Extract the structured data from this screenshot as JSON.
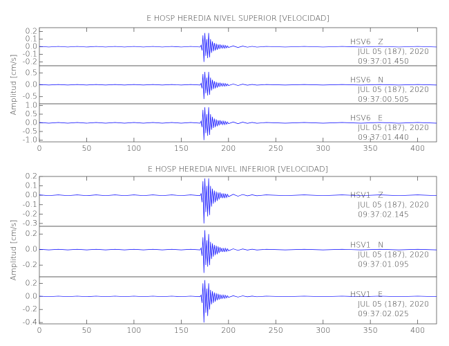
{
  "chart_data": [
    {
      "type": "line",
      "title": "E HOSP HEREDIA NIVEL SUPERIOR [VELOCIDAD]",
      "ylabel": "Amplitud [cm/s]",
      "xlim": [
        0,
        420
      ],
      "xticks": [
        0,
        50,
        100,
        150,
        200,
        250,
        300,
        350,
        400
      ],
      "x": [
        0,
        10,
        20,
        30,
        40,
        50,
        60,
        70,
        80,
        90,
        100,
        110,
        120,
        130,
        140,
        150,
        160,
        170,
        171,
        172,
        173,
        174,
        175,
        176,
        177,
        178,
        179,
        180,
        181,
        182,
        183,
        184,
        185,
        186,
        187,
        188,
        189,
        190,
        191,
        192,
        193,
        194,
        195,
        196,
        197,
        198,
        199,
        200,
        205,
        210,
        215,
        220,
        225,
        230,
        240,
        260,
        280,
        300,
        320,
        340,
        360,
        380,
        400,
        420
      ],
      "panels": [
        {
          "ylim": [
            -0.25,
            0.25
          ],
          "yticks": [
            0.2,
            0.1,
            {
              "value": 0,
              "label": "0.0"
            },
            -0.1,
            -0.2
          ],
          "series": [
            {
              "name": "HSV6   Z",
              "color": "#0000ff",
              "values": [
                0.004,
                -0.004,
                0.004,
                -0.004,
                0.004,
                -0.004,
                0.004,
                -0.004,
                0.004,
                -0.004,
                0.004,
                -0.004,
                0.004,
                -0.004,
                0.004,
                -0.004,
                0.004,
                -0.004,
                0.02,
                -0.05,
                0.15,
                -0.2,
                0.18,
                -0.12,
                0.1,
                -0.15,
                0.18,
                -0.14,
                0.1,
                -0.08,
                0.07,
                -0.06,
                0.05,
                -0.05,
                0.04,
                -0.04,
                0.03,
                -0.03,
                0.03,
                -0.02,
                0.02,
                -0.02,
                0.02,
                -0.02,
                0.016,
                -0.016,
                0.01,
                -0.01,
                0.01,
                -0.01,
                0.008,
                -0.006,
                0.005,
                -0.005,
                0.004,
                -0.004,
                0.004,
                -0.004,
                0.004,
                -0.004,
                0.004,
                -0.004,
                0.004,
                -0.004
              ]
            }
          ],
          "annotations": [
            "JUL 05 (187), 2020",
            "09:37:01.450"
          ]
        },
        {
          "ylim": [
            -0.8,
            0.8
          ],
          "yticks": [
            0.5,
            {
              "value": 0,
              "label": "0.0"
            },
            -0.5
          ],
          "series": [
            {
              "name": "HSV6   N",
              "color": "#0000ff",
              "values": [
                0.01,
                -0.01,
                0.01,
                -0.01,
                0.01,
                -0.01,
                0.01,
                -0.01,
                0.01,
                -0.01,
                0.01,
                -0.01,
                0.01,
                -0.01,
                0.01,
                -0.01,
                0.01,
                -0.01,
                0.06,
                -0.15,
                0.45,
                -0.6,
                0.54,
                -0.36,
                0.3,
                -0.45,
                0.54,
                -0.42,
                0.3,
                -0.24,
                0.21,
                -0.18,
                0.15,
                -0.15,
                0.12,
                -0.12,
                0.09,
                -0.09,
                0.09,
                -0.06,
                0.06,
                -0.06,
                0.06,
                -0.06,
                0.048,
                -0.048,
                0.03,
                -0.03,
                0.03,
                -0.03,
                0.024,
                -0.018,
                0.015,
                -0.015,
                0.01,
                -0.01,
                0.01,
                -0.01,
                0.01,
                -0.01,
                0.01,
                -0.01,
                0.01,
                -0.01
              ]
            }
          ],
          "annotations": [
            "JUL 05 (187), 2020",
            "09:37:00.505"
          ]
        },
        {
          "ylim": [
            -1.1,
            1.1
          ],
          "yticks": [
            {
              "value": 1,
              "label": "1.0"
            },
            0.5,
            {
              "value": 0,
              "label": "0.0"
            },
            -0.5,
            {
              "value": -1,
              "label": "-1.0"
            }
          ],
          "series": [
            {
              "name": "HSV6   E",
              "color": "#0000ff",
              "values": [
                0.02,
                -0.02,
                0.02,
                -0.02,
                0.02,
                -0.02,
                0.02,
                -0.02,
                0.02,
                -0.02,
                0.02,
                -0.02,
                0.02,
                -0.02,
                0.02,
                -0.02,
                0.02,
                -0.02,
                0.1,
                -0.25,
                0.75,
                -1.0,
                0.9,
                -0.6,
                0.5,
                -0.75,
                0.9,
                -0.7,
                0.5,
                -0.4,
                0.35,
                -0.3,
                0.25,
                -0.25,
                0.2,
                -0.2,
                0.15,
                -0.15,
                0.15,
                -0.1,
                0.1,
                -0.1,
                0.1,
                -0.1,
                0.08,
                -0.08,
                0.05,
                -0.05,
                0.05,
                -0.05,
                0.04,
                -0.03,
                0.025,
                -0.025,
                0.02,
                -0.02,
                0.02,
                -0.02,
                0.02,
                -0.02,
                0.02,
                -0.02,
                0.02,
                -0.02
              ]
            }
          ],
          "annotations": [
            "JUL 05 (187), 2020",
            "09:37:01.440"
          ]
        }
      ]
    },
    {
      "type": "line",
      "title": "E HOSP HEREDIA NIVEL INFERIOR [VELOCIDAD]",
      "ylabel": "Amplitud [cm/s]",
      "xlim": [
        0,
        420
      ],
      "xticks": [
        0,
        50,
        100,
        150,
        200,
        250,
        300,
        350,
        400
      ],
      "x": [
        0,
        10,
        20,
        30,
        40,
        50,
        60,
        70,
        80,
        90,
        100,
        110,
        120,
        130,
        140,
        150,
        160,
        170,
        171,
        172,
        173,
        174,
        175,
        176,
        177,
        178,
        179,
        180,
        181,
        182,
        183,
        184,
        185,
        186,
        187,
        188,
        189,
        190,
        191,
        192,
        193,
        194,
        195,
        196,
        197,
        198,
        199,
        200,
        205,
        210,
        215,
        220,
        225,
        230,
        240,
        260,
        280,
        300,
        320,
        340,
        360,
        380,
        400,
        420
      ],
      "panels": [
        {
          "ylim": [
            -0.33,
            0.2
          ],
          "yticks": [
            0.2,
            0.1,
            {
              "value": 0,
              "label": "0.0"
            },
            -0.1,
            -0.2,
            -0.3
          ],
          "series": [
            {
              "name": "HSV1   Z",
              "color": "#0000ff",
              "values": [
                0.004,
                -0.004,
                0.004,
                -0.004,
                0.004,
                -0.004,
                0.004,
                -0.004,
                0.004,
                -0.004,
                0.004,
                -0.004,
                0.004,
                -0.004,
                0.004,
                -0.004,
                0.004,
                -0.004,
                0.02,
                -0.075,
                0.15,
                -0.3,
                0.18,
                -0.18,
                0.1,
                -0.225,
                0.18,
                -0.21,
                0.1,
                -0.12,
                0.07,
                -0.09,
                0.05,
                -0.075,
                0.04,
                -0.06,
                0.03,
                -0.045,
                0.03,
                -0.03,
                0.02,
                -0.03,
                0.02,
                -0.03,
                0.016,
                -0.024,
                0.01,
                -0.015,
                0.01,
                -0.01,
                0.008,
                -0.006,
                0.005,
                -0.005,
                0.004,
                -0.004,
                0.004,
                -0.004,
                0.004,
                -0.004,
                0.004,
                -0.004,
                0.004,
                -0.004
              ]
            }
          ],
          "annotations": [
            "JUL 05 (187), 2020",
            "09:37:02.145"
          ]
        },
        {
          "ylim": [
            -0.35,
            0.3
          ],
          "yticks": [
            0.2,
            {
              "value": 0,
              "label": "0.0"
            },
            -0.2
          ],
          "series": [
            {
              "name": "HSV1   N",
              "color": "#0000ff",
              "values": [
                0.004,
                -0.004,
                0.004,
                -0.004,
                0.004,
                -0.004,
                0.004,
                -0.004,
                0.004,
                -0.004,
                0.004,
                -0.004,
                0.004,
                -0.004,
                0.004,
                -0.004,
                0.004,
                -0.004,
                0.02,
                -0.08,
                0.16,
                -0.3,
                0.25,
                -0.2,
                0.12,
                -0.22,
                0.2,
                -0.2,
                0.1,
                -0.12,
                0.08,
                -0.09,
                0.06,
                -0.07,
                0.05,
                -0.06,
                0.04,
                -0.045,
                0.03,
                -0.03,
                0.02,
                -0.03,
                0.02,
                -0.03,
                0.016,
                -0.024,
                0.01,
                -0.015,
                0.01,
                -0.01,
                0.008,
                -0.006,
                0.005,
                -0.005,
                0.004,
                -0.004,
                0.004,
                -0.004,
                0.004,
                -0.004,
                0.004,
                -0.004,
                0.004,
                -0.004
              ]
            }
          ],
          "annotations": [
            "JUL 05 (187), 2020",
            "09:37:01.095"
          ]
        },
        {
          "ylim": [
            -0.42,
            0.3
          ],
          "yticks": [
            0.2,
            {
              "value": 0,
              "label": "0.0"
            },
            -0.2,
            -0.4
          ],
          "series": [
            {
              "name": "HSV1   E",
              "color": "#0000ff",
              "values": [
                0.004,
                -0.004,
                0.004,
                -0.004,
                0.004,
                -0.004,
                0.004,
                -0.004,
                0.004,
                -0.004,
                0.004,
                -0.004,
                0.004,
                -0.004,
                0.004,
                -0.004,
                0.004,
                -0.004,
                0.02,
                -0.1,
                0.2,
                -0.4,
                0.25,
                -0.25,
                0.12,
                -0.3,
                0.2,
                -0.2,
                0.1,
                -0.12,
                0.08,
                -0.1,
                0.06,
                -0.08,
                0.05,
                -0.06,
                0.04,
                -0.05,
                0.03,
                -0.04,
                0.02,
                -0.03,
                0.02,
                -0.03,
                0.016,
                -0.024,
                0.01,
                -0.015,
                0.01,
                -0.01,
                0.008,
                -0.006,
                0.005,
                -0.005,
                0.004,
                -0.004,
                0.004,
                -0.004,
                0.004,
                -0.004,
                0.004,
                -0.004,
                0.004,
                -0.004
              ]
            }
          ],
          "annotations": [
            "JUL 05 (187), 2020",
            "09:37:02.025"
          ]
        }
      ]
    }
  ]
}
